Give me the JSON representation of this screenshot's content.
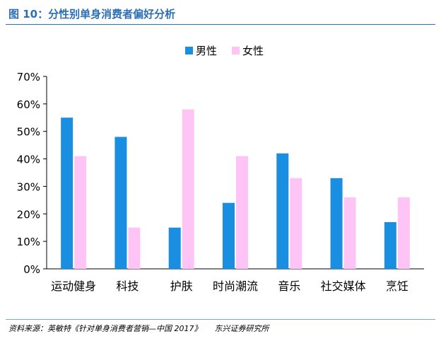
{
  "figure_title": "图 10：分性别单身消费者偏好分析",
  "source_text": "资料来源：英敏特《针对单身消费者营销—中国 2017》",
  "source_org": "东兴证券研究所",
  "colors": {
    "male": "#1a8ee0",
    "female": "#ffc4f6",
    "accent": "#2c6fb5"
  },
  "chart_data": {
    "type": "bar",
    "categories": [
      "运动健身",
      "科技",
      "护肤",
      "时尚潮流",
      "音乐",
      "社交媒体",
      "烹饪"
    ],
    "series": [
      {
        "name": "男性",
        "values": [
          55,
          48,
          15,
          24,
          42,
          33,
          17
        ]
      },
      {
        "name": "女性",
        "values": [
          41,
          15,
          58,
          41,
          33,
          26,
          26
        ]
      }
    ],
    "ylim": [
      0,
      70
    ],
    "yticks": [
      "0%",
      "10%",
      "20%",
      "30%",
      "40%",
      "50%",
      "60%",
      "70%"
    ],
    "legend_position": "top-center",
    "grid": false
  }
}
